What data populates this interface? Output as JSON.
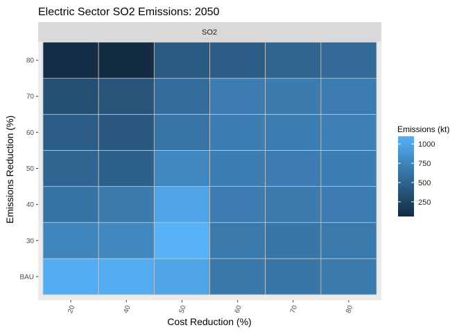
{
  "chart_data": {
    "type": "heatmap",
    "title": "Electric Sector SO2 Emissions: 2050",
    "facet_label": "SO2",
    "xlabel": "Cost Reduction (%)",
    "ylabel": "Emissions Reduction (%)",
    "x_categories": [
      "20",
      "40",
      "50",
      "60",
      "70",
      "80"
    ],
    "y_categories": [
      "BAU",
      "30",
      "40",
      "50",
      "60",
      "70",
      "80"
    ],
    "values": [
      [
        1080,
        1060,
        1010,
        660,
        640,
        670
      ],
      [
        760,
        780,
        1100,
        670,
        640,
        670
      ],
      [
        620,
        680,
        1000,
        690,
        680,
        690
      ],
      [
        510,
        470,
        780,
        700,
        690,
        700
      ],
      [
        440,
        400,
        630,
        700,
        700,
        720
      ],
      [
        330,
        380,
        570,
        690,
        680,
        690
      ],
      [
        70,
        60,
        430,
        450,
        510,
        540
      ]
    ],
    "legend": {
      "title": "Emissions (kt)",
      "ticks": [
        250,
        500,
        750,
        1000
      ],
      "range": [
        60,
        1100
      ],
      "low_color": "#132B43",
      "high_color": "#56B1F7"
    },
    "grid": true
  }
}
